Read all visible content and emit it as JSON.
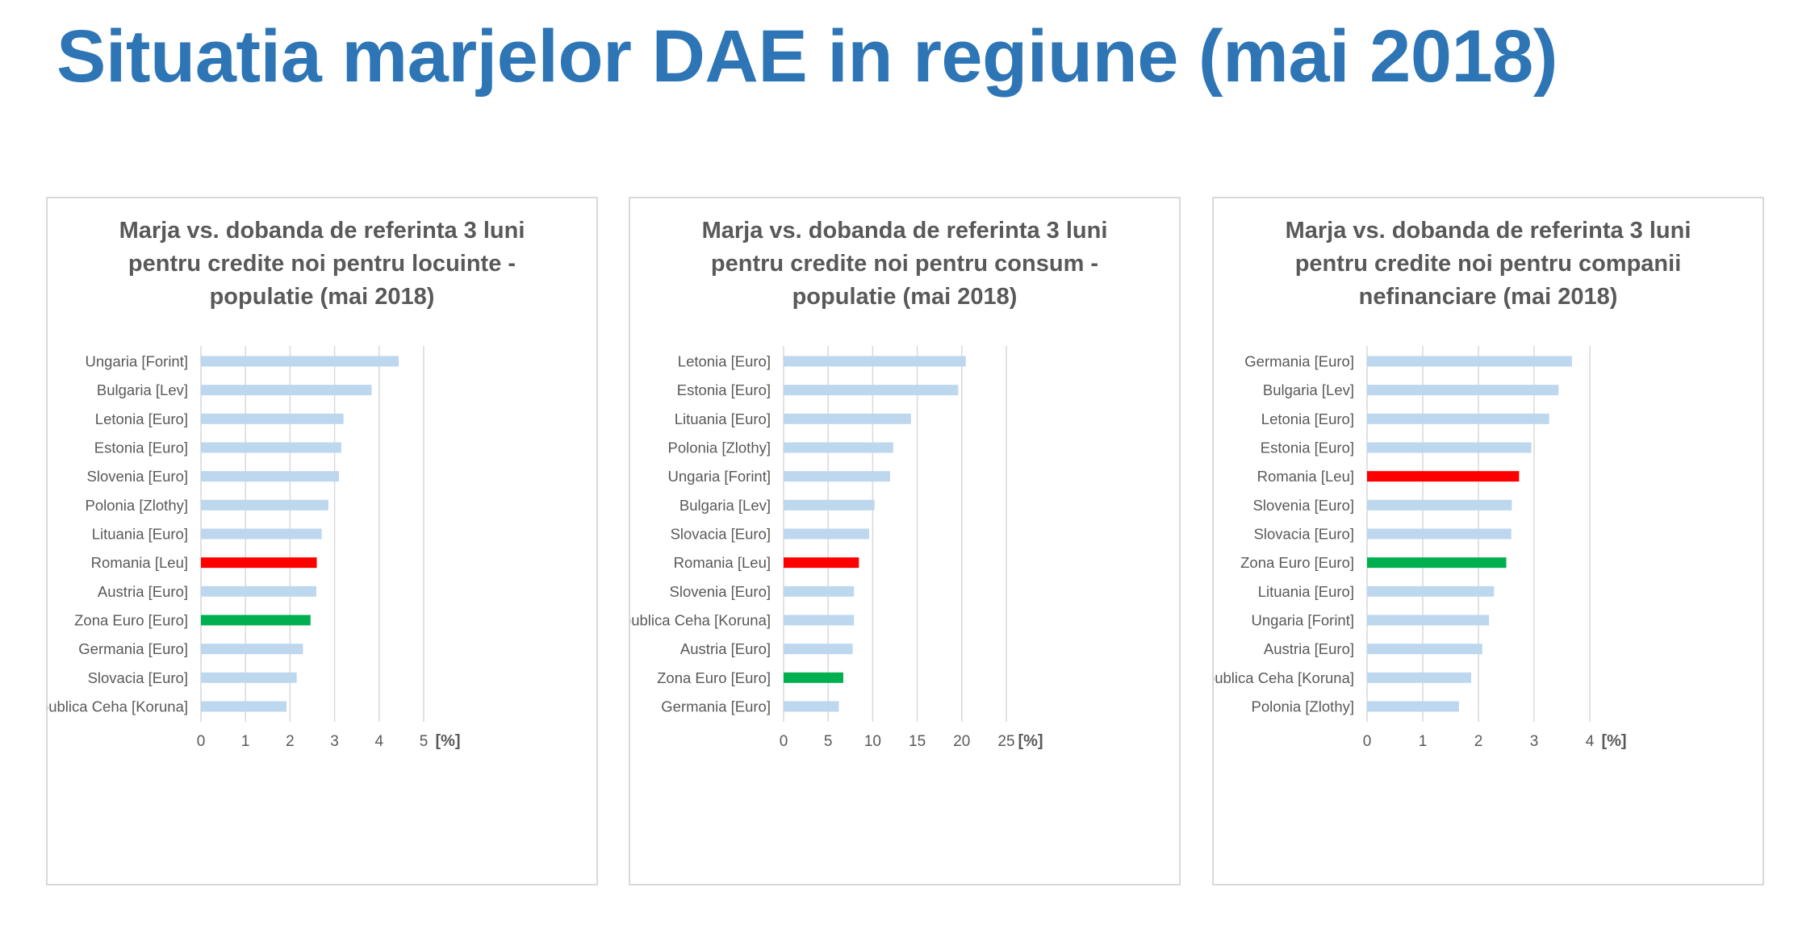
{
  "title": "Situatia marjelor DAE in regiune (mai 2018)",
  "colors": {
    "default": "#BDD7EE",
    "romania": "#FF0000",
    "euro_zone": "#00B050",
    "grid": "#D9D9D9",
    "text": "#595959",
    "title": "#2E75B6"
  },
  "chart_data": [
    {
      "type": "bar",
      "orientation": "horizontal",
      "title": "Marja vs. dobanda de referinta 3 luni pentru credite noi pentru locuinte - populatie (mai 2018)",
      "xlabel": "[%]",
      "xlim": [
        0,
        5
      ],
      "xticks": [
        "0",
        "1",
        "2",
        "3",
        "4",
        "5"
      ],
      "grid": true,
      "categories": [
        "Ungaria [Forint]",
        "Bulgaria [Lev]",
        "Letonia [Euro]",
        "Estonia [Euro]",
        "Slovenia [Euro]",
        "Polonia [Zlothy]",
        "Lituania [Euro]",
        "Romania [Leu]",
        "Austria [Euro]",
        "Zona Euro [Euro]",
        "Germania [Euro]",
        "Slovacia [Euro]",
        "Republica Ceha [Koruna]"
      ],
      "values": [
        4.44,
        3.83,
        3.2,
        3.15,
        3.1,
        2.86,
        2.71,
        2.6,
        2.59,
        2.46,
        2.29,
        2.15,
        1.92
      ]
    },
    {
      "type": "bar",
      "orientation": "horizontal",
      "title": "Marja vs. dobanda de referinta 3 luni pentru credite noi pentru consum - populatie (mai 2018)",
      "xlabel": "[%]",
      "xlim": [
        0,
        25
      ],
      "xticks": [
        "0",
        "5",
        "10",
        "15",
        "20",
        "25"
      ],
      "grid": true,
      "categories": [
        "Letonia [Euro]",
        "Estonia [Euro]",
        "Lituania [Euro]",
        "Polonia [Zlothy]",
        "Ungaria [Forint]",
        "Bulgaria [Lev]",
        "Slovacia [Euro]",
        "Romania [Leu]",
        "Slovenia [Euro]",
        "Republica Ceha [Koruna]",
        "Austria [Euro]",
        "Zona Euro [Euro]",
        "Germania [Euro]"
      ],
      "values": [
        20.45,
        19.6,
        14.3,
        12.3,
        11.95,
        10.2,
        9.6,
        8.45,
        7.9,
        7.9,
        7.75,
        6.7,
        6.2
      ]
    },
    {
      "type": "bar",
      "orientation": "horizontal",
      "title": "Marja vs. dobanda de referinta 3 luni pentru credite noi pentru companii nefinanciare (mai 2018)",
      "xlabel": "[%]",
      "xlim": [
        0,
        4
      ],
      "xticks": [
        "0",
        "1",
        "2",
        "3",
        "4"
      ],
      "grid": true,
      "categories": [
        "Germania [Euro]",
        "Bulgaria [Lev]",
        "Letonia [Euro]",
        "Estonia [Euro]",
        "Romania [Leu]",
        "Slovenia [Euro]",
        "Slovacia [Euro]",
        "Zona Euro [Euro]",
        "Lituania [Euro]",
        "Ungaria [Forint]",
        "Austria [Euro]",
        "Republica Ceha [Koruna]",
        "Polonia [Zlothy]"
      ],
      "values": [
        3.68,
        3.44,
        3.27,
        2.95,
        2.73,
        2.6,
        2.59,
        2.5,
        2.28,
        2.19,
        2.07,
        1.87,
        1.65
      ]
    }
  ]
}
